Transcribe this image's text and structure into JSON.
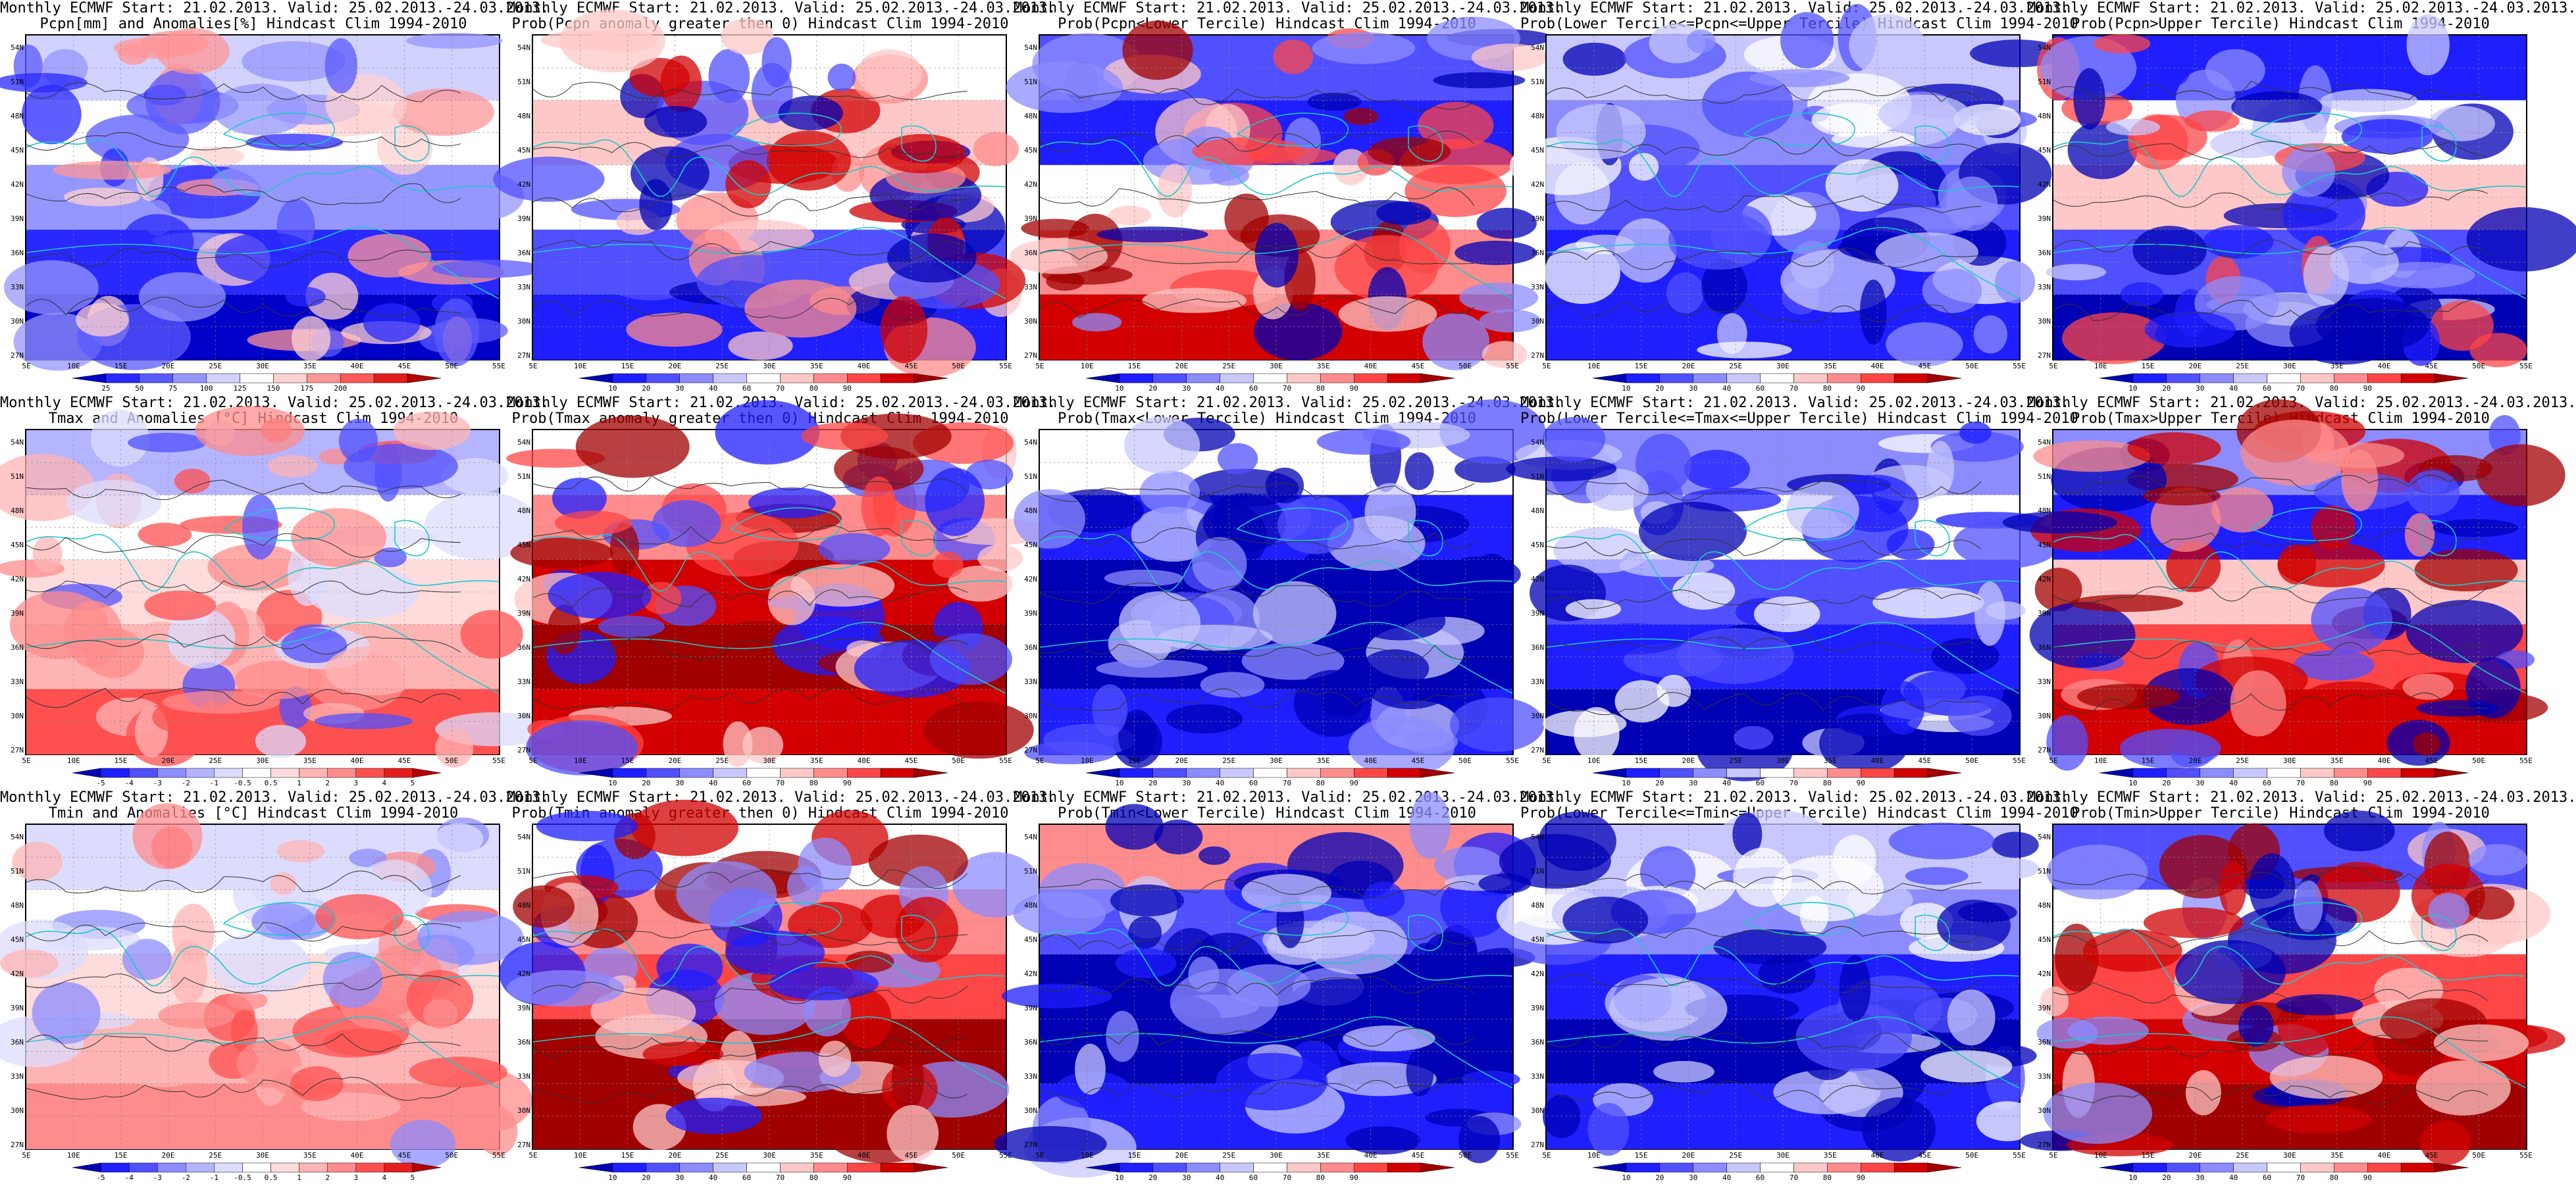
{
  "rows": [
    {
      "variable": "Pcpn",
      "panels": [
        {
          "title1": "Monthly ECMWF Start: 21.02.2013. Valid: 25.02.2013.-24.03.2013.",
          "title2": "Pcpn[mm] and Anomalies[%] Hindcast Clim 1994-2010",
          "scale": "anomaly",
          "pattern": "p0"
        },
        {
          "title1": "Monthly ECMWF Start: 21.02.2013. Valid: 25.02.2013.-24.03.2013.",
          "title2": "Prob(Pcpn anomaly greater then 0) Hindcast Clim 1994-2010",
          "scale": "prob",
          "pattern": "p1"
        },
        {
          "title1": "Monthly ECMWF Start: 21.02.2013. Valid: 25.02.2013.-24.03.2013.",
          "title2": "Prob(Pcpn<Lower Tercile) Hindcast Clim 1994-2010",
          "scale": "prob",
          "pattern": "p2"
        },
        {
          "title1": "Monthly ECMWF Start: 21.02.2013. Valid: 25.02.2013.-24.03.2013.",
          "title2": "Prob(Lower Tercile<=Pcpn<=Upper Tercile) Hindcast Clim 1994-2010",
          "scale": "prob",
          "pattern": "p3"
        },
        {
          "title1": "Monthly ECMWF Start: 21.02.2013. Valid: 25.02.2013.-24.03.2013.",
          "title2": "Prob(Pcpn>Upper Tercile) Hindcast Clim 1994-2010",
          "scale": "prob",
          "pattern": "p4"
        }
      ]
    },
    {
      "variable": "Tmax",
      "panels": [
        {
          "title1": "Monthly ECMWF Start: 21.02.2013. Valid: 25.02.2013.-24.03.2013.",
          "title2": "Tmax and Anomalies [°C] Hindcast Clim 1994-2010",
          "scale": "temp",
          "pattern": "t0"
        },
        {
          "title1": "Monthly ECMWF Start: 21.02.2013. Valid: 25.02.2013.-24.03.2013.",
          "title2": "Prob(Tmax anomaly greater then 0) Hindcast Clim 1994-2010",
          "scale": "prob",
          "pattern": "t1"
        },
        {
          "title1": "Monthly ECMWF Start: 21.02.2013. Valid: 25.02.2013.-24.03.2013.",
          "title2": "Prob(Tmax<Lower Tercile) Hindcast Clim 1994-2010",
          "scale": "prob",
          "pattern": "t2"
        },
        {
          "title1": "Monthly ECMWF Start: 21.02.2013. Valid: 25.02.2013.-24.03.2013.",
          "title2": "Prob(Lower Tercile<=Tmax<=Upper Tercile) Hindcast Clim 1994-2010",
          "scale": "prob",
          "pattern": "t3"
        },
        {
          "title1": "Monthly ECMWF Start: 21.02.2013. Valid: 25.02.2013.-24.03.2013.",
          "title2": "Prob(Tmax>Upper Tercile) Hindcast Clim 1994-2010",
          "scale": "prob",
          "pattern": "t4"
        }
      ]
    },
    {
      "variable": "Tmin",
      "panels": [
        {
          "title1": "Monthly ECMWF Start: 21.02.2013. Valid: 25.02.2013.-24.03.2013.",
          "title2": "Tmin and Anomalies [°C] Hindcast Clim 1994-2010",
          "scale": "temp",
          "pattern": "n0"
        },
        {
          "title1": "Monthly ECMWF Start: 21.02.2013. Valid: 25.02.2013.-24.03.2013.",
          "title2": "Prob(Tmin anomaly greater then 0) Hindcast Clim 1994-2010",
          "scale": "prob",
          "pattern": "n1"
        },
        {
          "title1": "Monthly ECMWF Start: 21.02.2013. Valid: 25.02.2013.-24.03.2013.",
          "title2": "Prob(Tmin<Lower Tercile) Hindcast Clim 1994-2010",
          "scale": "prob",
          "pattern": "n2"
        },
        {
          "title1": "Monthly ECMWF Start: 21.02.2013. Valid: 25.02.2013.-24.03.2013.",
          "title2": "Prob(Lower Tercile<=Tmin<=Upper Tercile) Hindcast Clim 1994-2010",
          "scale": "prob",
          "pattern": "n3"
        },
        {
          "title1": "Monthly ECMWF Start: 21.02.2013. Valid: 25.02.2013.-24.03.2013.",
          "title2": "Prob(Tmin>Upper Tercile) Hindcast Clim 1994-2010",
          "scale": "prob",
          "pattern": "n4"
        }
      ]
    }
  ],
  "latitude_labels": [
    "54N",
    "51N",
    "48N",
    "45N",
    "42N",
    "39N",
    "36N",
    "33N",
    "30N",
    "27N"
  ],
  "longitude_labels": [
    "5E",
    "10E",
    "15E",
    "20E",
    "25E",
    "30E",
    "35E",
    "40E",
    "45E",
    "50E",
    "55E"
  ],
  "scales": {
    "anomaly": {
      "ticks": [
        "25",
        "50",
        "75",
        "100",
        "125",
        "150",
        "175",
        "200"
      ],
      "colors": [
        "#0000c8",
        "#2828ff",
        "#5a5aff",
        "#9696ff",
        "#d2d2ff",
        "#ffffff",
        "#ffd2d2",
        "#ff9696",
        "#ff5a5a",
        "#e11e1e",
        "#b40000"
      ]
    },
    "prob": {
      "ticks": [
        "10",
        "20",
        "30",
        "40",
        "60",
        "70",
        "80",
        "90"
      ],
      "colors": [
        "#0000b4",
        "#1e1eff",
        "#5050ff",
        "#8c8cff",
        "#c8c8ff",
        "#ffffff",
        "#ffc8c8",
        "#ff8c8c",
        "#ff4646",
        "#d20000",
        "#a00000"
      ]
    },
    "temp": {
      "ticks": [
        "-5",
        "-4",
        "-3",
        "-2",
        "-1",
        "-0.5",
        "0.5",
        "1",
        "2",
        "3",
        "4",
        "5"
      ],
      "colors": [
        "#0000b4",
        "#1e1eff",
        "#5050ff",
        "#8c8cff",
        "#b4b4ff",
        "#dcdcff",
        "#ffffff",
        "#ffdcdc",
        "#ffb4b4",
        "#ff8c8c",
        "#ff5050",
        "#e61e1e",
        "#b40000"
      ]
    }
  },
  "colors": {
    "coastline": "#1ec8c8",
    "contour": "#333333",
    "frame": "#000000"
  }
}
